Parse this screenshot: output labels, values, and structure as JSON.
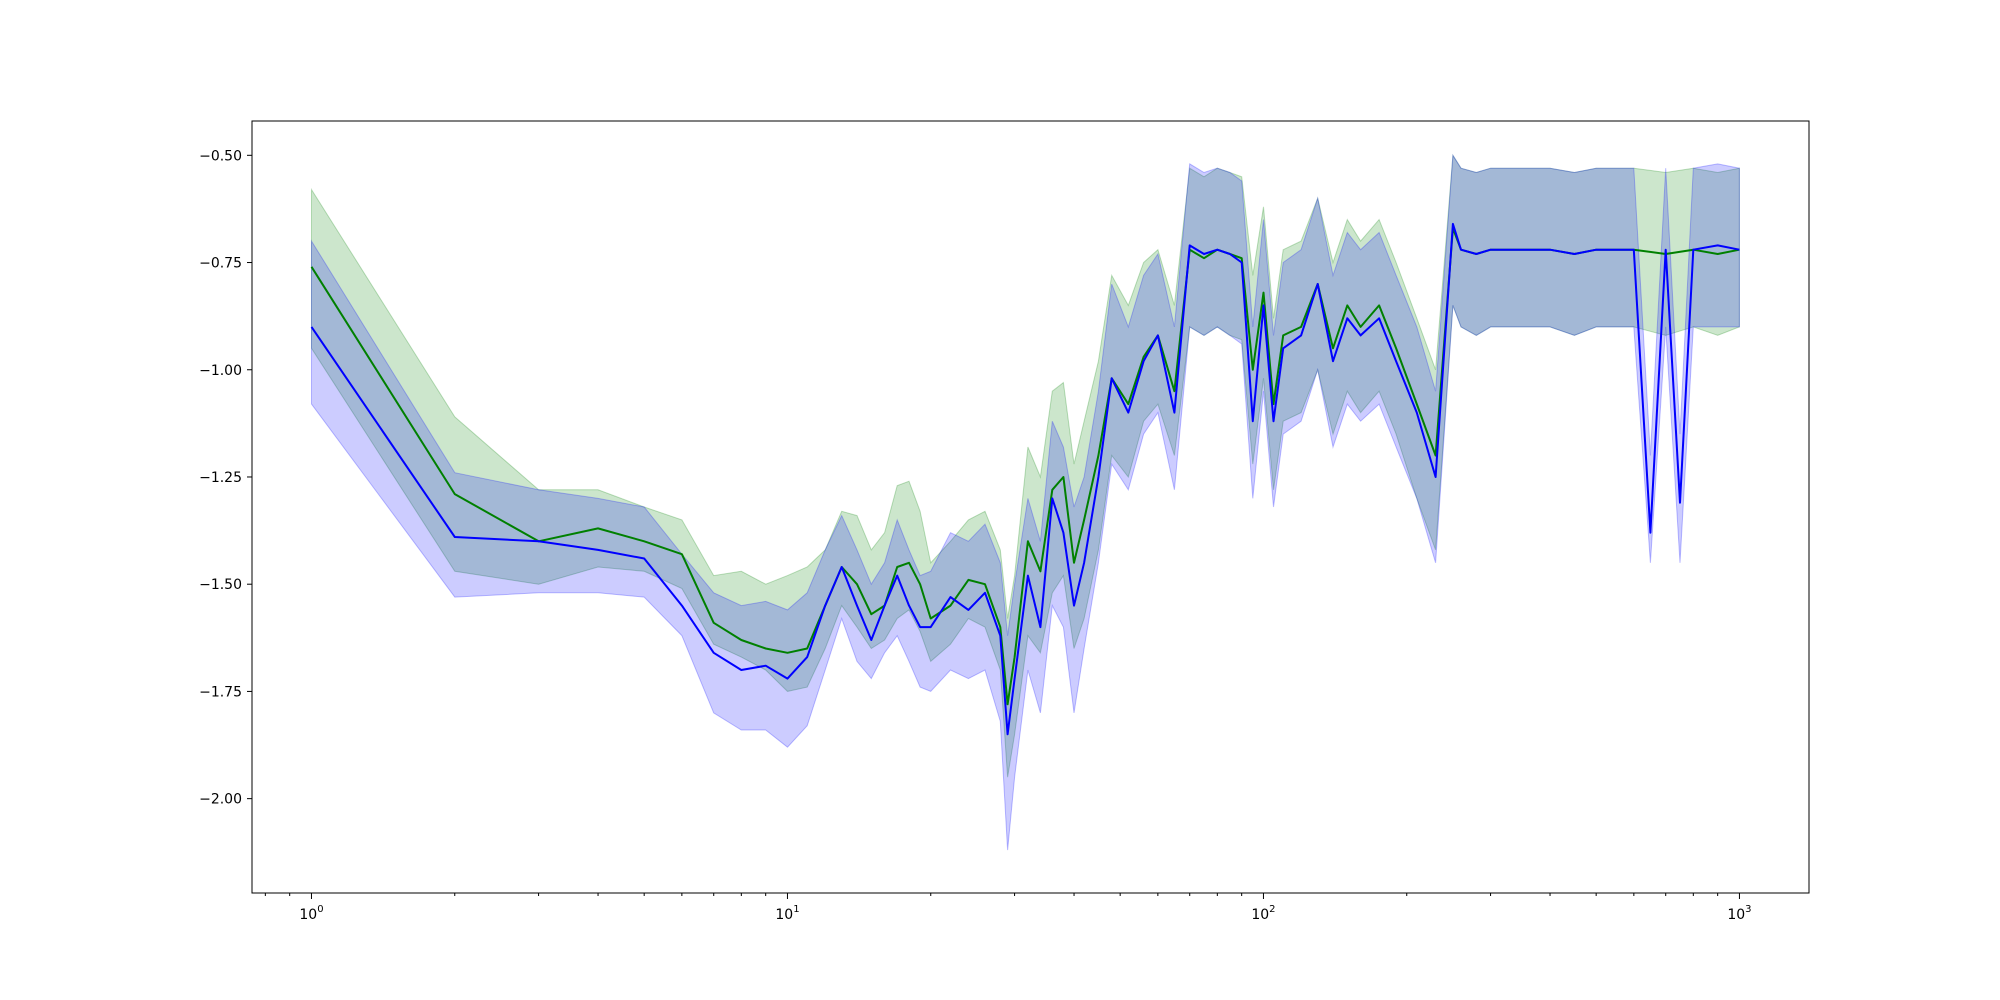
{
  "chart_data": {
    "type": "line",
    "x_scale": "log",
    "xlim": [
      0.75,
      1400
    ],
    "ylim": [
      -2.22,
      -0.42
    ],
    "x_ticks": [
      {
        "value": 1,
        "base": "10",
        "exp": "0"
      },
      {
        "value": 10,
        "base": "10",
        "exp": "1"
      },
      {
        "value": 100,
        "base": "10",
        "exp": "2"
      },
      {
        "value": 1000,
        "base": "10",
        "exp": "3"
      }
    ],
    "y_ticks": [
      {
        "value": -0.5,
        "label": "−0.50"
      },
      {
        "value": -0.75,
        "label": "−0.75"
      },
      {
        "value": -1.0,
        "label": "−1.00"
      },
      {
        "value": -1.25,
        "label": "−1.25"
      },
      {
        "value": -1.5,
        "label": "−1.50"
      },
      {
        "value": -1.75,
        "label": "−1.75"
      },
      {
        "value": -2.0,
        "label": "−2.00"
      }
    ],
    "grid": false,
    "legend": "none",
    "series": [
      {
        "color": "#008000",
        "band_color": "#008000",
        "band_opacity": 0.2,
        "x": [
          1,
          2,
          3,
          4,
          5,
          6,
          7,
          8,
          9,
          10,
          11,
          12,
          13,
          14,
          15,
          16,
          17,
          18,
          19,
          20,
          22,
          24,
          26,
          28,
          29,
          30,
          32,
          34,
          36,
          38,
          40,
          42,
          45,
          48,
          52,
          56,
          60,
          65,
          70,
          75,
          80,
          85,
          90,
          95,
          100,
          105,
          110,
          120,
          130,
          140,
          150,
          160,
          175,
          190,
          210,
          230,
          250,
          260,
          280,
          300,
          350,
          400,
          450,
          500,
          600,
          700,
          800,
          900,
          1000
        ],
        "mean": [
          -0.76,
          -1.29,
          -1.4,
          -1.37,
          -1.4,
          -1.43,
          -1.59,
          -1.63,
          -1.65,
          -1.66,
          -1.65,
          -1.55,
          -1.46,
          -1.5,
          -1.57,
          -1.55,
          -1.46,
          -1.45,
          -1.5,
          -1.58,
          -1.55,
          -1.49,
          -1.5,
          -1.6,
          -1.78,
          -1.67,
          -1.4,
          -1.47,
          -1.28,
          -1.25,
          -1.45,
          -1.35,
          -1.2,
          -1.02,
          -1.08,
          -0.97,
          -0.92,
          -1.05,
          -0.72,
          -0.74,
          -0.72,
          -0.73,
          -0.74,
          -1.0,
          -0.82,
          -1.08,
          -0.92,
          -0.9,
          -0.8,
          -0.95,
          -0.85,
          -0.9,
          -0.85,
          -0.95,
          -1.08,
          -1.2,
          -0.67,
          -0.72,
          -0.73,
          -0.72,
          -0.72,
          -0.72,
          -0.73,
          -0.72,
          -0.72,
          -0.73,
          -0.72,
          -0.73,
          -0.72
        ],
        "lower": [
          -0.95,
          -1.47,
          -1.5,
          -1.46,
          -1.47,
          -1.51,
          -1.64,
          -1.67,
          -1.7,
          -1.75,
          -1.74,
          -1.65,
          -1.55,
          -1.6,
          -1.65,
          -1.63,
          -1.58,
          -1.56,
          -1.61,
          -1.68,
          -1.64,
          -1.58,
          -1.6,
          -1.7,
          -1.95,
          -1.85,
          -1.62,
          -1.66,
          -1.52,
          -1.48,
          -1.65,
          -1.58,
          -1.42,
          -1.2,
          -1.25,
          -1.12,
          -1.08,
          -1.2,
          -0.9,
          -0.92,
          -0.9,
          -0.92,
          -0.93,
          -1.22,
          -1.02,
          -1.28,
          -1.12,
          -1.1,
          -1.0,
          -1.15,
          -1.05,
          -1.1,
          -1.05,
          -1.15,
          -1.3,
          -1.42,
          -0.85,
          -0.9,
          -0.92,
          -0.9,
          -0.9,
          -0.9,
          -0.92,
          -0.9,
          -0.9,
          -0.92,
          -0.9,
          -0.92,
          -0.9
        ],
        "upper": [
          -0.58,
          -1.11,
          -1.28,
          -1.28,
          -1.32,
          -1.35,
          -1.48,
          -1.47,
          -1.5,
          -1.48,
          -1.46,
          -1.42,
          -1.33,
          -1.34,
          -1.42,
          -1.38,
          -1.27,
          -1.26,
          -1.33,
          -1.45,
          -1.4,
          -1.35,
          -1.33,
          -1.42,
          -1.58,
          -1.48,
          -1.18,
          -1.25,
          -1.05,
          -1.03,
          -1.22,
          -1.12,
          -0.98,
          -0.78,
          -0.85,
          -0.75,
          -0.72,
          -0.85,
          -0.53,
          -0.55,
          -0.53,
          -0.54,
          -0.55,
          -0.78,
          -0.62,
          -0.88,
          -0.72,
          -0.7,
          -0.6,
          -0.75,
          -0.65,
          -0.7,
          -0.65,
          -0.75,
          -0.88,
          -1.0,
          -0.5,
          -0.53,
          -0.54,
          -0.53,
          -0.53,
          -0.53,
          -0.54,
          -0.53,
          -0.53,
          -0.54,
          -0.53,
          -0.54,
          -0.53
        ]
      },
      {
        "color": "#0000ff",
        "band_color": "#0000ff",
        "band_opacity": 0.2,
        "x": [
          1,
          2,
          3,
          4,
          5,
          6,
          7,
          8,
          9,
          10,
          11,
          12,
          13,
          14,
          15,
          16,
          17,
          18,
          19,
          20,
          22,
          24,
          26,
          28,
          29,
          30,
          32,
          34,
          36,
          38,
          40,
          42,
          45,
          48,
          52,
          56,
          60,
          65,
          70,
          75,
          80,
          85,
          90,
          95,
          100,
          105,
          110,
          120,
          130,
          140,
          150,
          160,
          175,
          190,
          210,
          230,
          250,
          260,
          280,
          300,
          350,
          400,
          450,
          500,
          600,
          650,
          700,
          750,
          800,
          900,
          1000
        ],
        "mean": [
          -0.9,
          -1.39,
          -1.4,
          -1.42,
          -1.44,
          -1.55,
          -1.66,
          -1.7,
          -1.69,
          -1.72,
          -1.67,
          -1.55,
          -1.46,
          -1.55,
          -1.63,
          -1.55,
          -1.48,
          -1.55,
          -1.6,
          -1.6,
          -1.53,
          -1.56,
          -1.52,
          -1.62,
          -1.85,
          -1.72,
          -1.48,
          -1.6,
          -1.3,
          -1.38,
          -1.55,
          -1.45,
          -1.25,
          -1.02,
          -1.1,
          -0.98,
          -0.92,
          -1.1,
          -0.71,
          -0.73,
          -0.72,
          -0.73,
          -0.75,
          -1.12,
          -0.85,
          -1.12,
          -0.95,
          -0.92,
          -0.8,
          -0.98,
          -0.88,
          -0.92,
          -0.88,
          -0.98,
          -1.1,
          -1.25,
          -0.66,
          -0.72,
          -0.73,
          -0.72,
          -0.72,
          -0.72,
          -0.73,
          -0.72,
          -0.72,
          -1.38,
          -0.72,
          -1.31,
          -0.72,
          -0.71,
          -0.72
        ],
        "lower": [
          -1.08,
          -1.53,
          -1.52,
          -1.52,
          -1.53,
          -1.62,
          -1.8,
          -1.84,
          -1.84,
          -1.88,
          -1.83,
          -1.7,
          -1.58,
          -1.68,
          -1.72,
          -1.66,
          -1.62,
          -1.68,
          -1.74,
          -1.75,
          -1.7,
          -1.72,
          -1.7,
          -1.82,
          -2.12,
          -1.95,
          -1.7,
          -1.8,
          -1.55,
          -1.6,
          -1.8,
          -1.65,
          -1.45,
          -1.22,
          -1.28,
          -1.15,
          -1.1,
          -1.28,
          -0.9,
          -0.92,
          -0.9,
          -0.92,
          -0.94,
          -1.3,
          -1.05,
          -1.32,
          -1.15,
          -1.12,
          -1.0,
          -1.18,
          -1.08,
          -1.12,
          -1.08,
          -1.18,
          -1.3,
          -1.45,
          -0.85,
          -0.9,
          -0.92,
          -0.9,
          -0.9,
          -0.9,
          -0.92,
          -0.9,
          -0.9,
          -1.45,
          -0.9,
          -1.45,
          -0.9,
          -0.9,
          -0.9
        ],
        "upper": [
          -0.7,
          -1.24,
          -1.28,
          -1.3,
          -1.32,
          -1.43,
          -1.52,
          -1.55,
          -1.54,
          -1.56,
          -1.52,
          -1.42,
          -1.34,
          -1.42,
          -1.5,
          -1.45,
          -1.35,
          -1.42,
          -1.48,
          -1.47,
          -1.38,
          -1.4,
          -1.36,
          -1.45,
          -1.62,
          -1.5,
          -1.3,
          -1.4,
          -1.12,
          -1.18,
          -1.32,
          -1.25,
          -1.05,
          -0.8,
          -0.9,
          -0.78,
          -0.73,
          -0.9,
          -0.52,
          -0.54,
          -0.53,
          -0.54,
          -0.56,
          -0.9,
          -0.65,
          -0.92,
          -0.75,
          -0.72,
          -0.6,
          -0.78,
          -0.68,
          -0.72,
          -0.68,
          -0.78,
          -0.9,
          -1.05,
          -0.5,
          -0.53,
          -0.54,
          -0.53,
          -0.53,
          -0.53,
          -0.54,
          -0.53,
          -0.53,
          -1.2,
          -0.53,
          -1.15,
          -0.53,
          -0.52,
          -0.53
        ]
      }
    ]
  }
}
